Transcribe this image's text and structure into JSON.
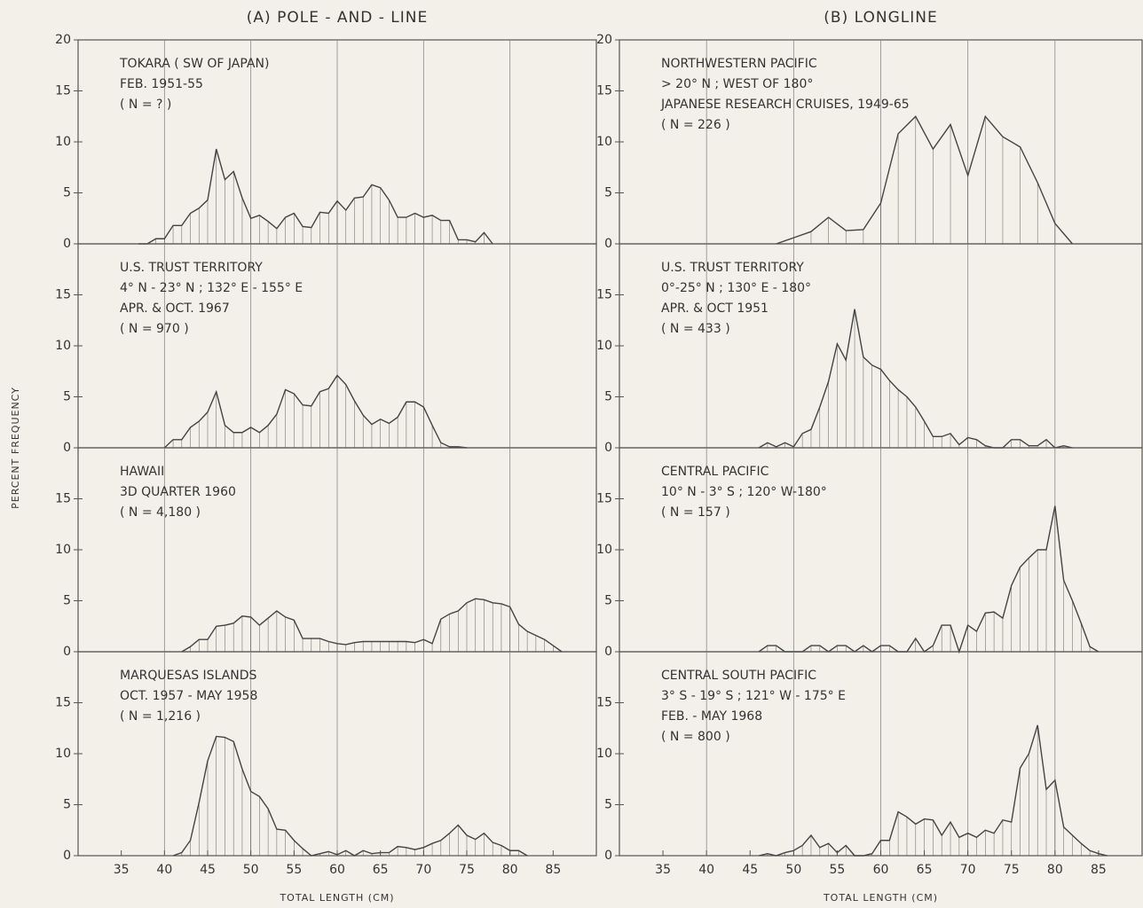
{
  "ylabel": "PERCENT FREQUENCY",
  "chart_data": [
    {
      "type": "line",
      "column_title": "(A) POLE - AND - LINE",
      "annotations": [
        "TOKARA ( SW OF JAPAN)",
        "FEB. 1951-55",
        "( N = ? )"
      ],
      "color": "#444444",
      "xlim": [
        30,
        90
      ],
      "ylim": [
        0,
        20
      ],
      "yticks": [
        0,
        5,
        10,
        15,
        20
      ],
      "grid_x": [
        40,
        50,
        60,
        70,
        80
      ],
      "x": [
        37,
        38,
        39,
        40,
        41,
        42,
        43,
        44,
        45,
        46,
        47,
        48,
        49,
        50,
        51,
        52,
        53,
        54,
        55,
        56,
        57,
        58,
        59,
        60,
        61,
        62,
        63,
        64,
        65,
        66,
        67,
        68,
        69,
        70,
        71,
        72,
        73,
        74,
        75,
        76,
        77,
        78
      ],
      "values": [
        0,
        0,
        0.5,
        0.5,
        1.8,
        1.8,
        3,
        3.5,
        4.3,
        9.3,
        6.3,
        7.1,
        4.5,
        2.5,
        2.8,
        2.2,
        1.5,
        2.6,
        3,
        1.7,
        1.6,
        3.1,
        3,
        4.2,
        3.3,
        4.5,
        4.6,
        5.8,
        5.5,
        4.3,
        2.6,
        2.6,
        3,
        2.6,
        2.8,
        2.3,
        2.3,
        0.4,
        0.4,
        0.2,
        1.1,
        0
      ]
    },
    {
      "type": "line",
      "annotations": [
        "U.S. TRUST TERRITORY",
        "4° N - 23° N ; 132° E - 155° E",
        "APR. & OCT. 1967",
        "( N = 970 )"
      ],
      "color": "#444444",
      "xlim": [
        30,
        90
      ],
      "ylim": [
        0,
        20
      ],
      "yticks": [
        0,
        5,
        10,
        15
      ],
      "grid_x": [
        40,
        50,
        60,
        70,
        80
      ],
      "x": [
        40,
        41,
        42,
        43,
        44,
        45,
        46,
        47,
        48,
        49,
        50,
        51,
        52,
        53,
        54,
        55,
        56,
        57,
        58,
        59,
        60,
        61,
        62,
        63,
        64,
        65,
        66,
        67,
        68,
        69,
        70,
        71,
        72,
        73,
        74,
        75
      ],
      "values": [
        0,
        0.8,
        0.8,
        2,
        2.6,
        3.5,
        5.5,
        2.2,
        1.5,
        1.5,
        2,
        1.5,
        2.2,
        3.3,
        5.7,
        5.3,
        4.2,
        4.1,
        5.5,
        5.8,
        7.1,
        6.2,
        4.6,
        3.2,
        2.3,
        2.8,
        2.4,
        3,
        4.5,
        4.5,
        4,
        2.2,
        0.5,
        0.1,
        0.1,
        0
      ]
    },
    {
      "type": "line",
      "annotations": [
        "HAWAII",
        "3D QUARTER 1960",
        "( N = 4,180 )"
      ],
      "color": "#444444",
      "xlim": [
        30,
        90
      ],
      "ylim": [
        0,
        20
      ],
      "yticks": [
        0,
        5,
        10,
        15
      ],
      "grid_x": [
        40,
        50,
        60,
        70,
        80
      ],
      "x": [
        42,
        43,
        44,
        45,
        46,
        47,
        48,
        49,
        50,
        51,
        52,
        53,
        54,
        55,
        56,
        57,
        58,
        59,
        60,
        61,
        62,
        63,
        64,
        65,
        66,
        67,
        68,
        69,
        70,
        71,
        72,
        73,
        74,
        75,
        76,
        77,
        78,
        79,
        80,
        81,
        82,
        83,
        84,
        85,
        86
      ],
      "values": [
        0,
        0.5,
        1.2,
        1.2,
        2.5,
        2.6,
        2.8,
        3.5,
        3.4,
        2.6,
        3.3,
        4,
        3.4,
        3.1,
        1.3,
        1.3,
        1.3,
        1,
        0.8,
        0.7,
        0.9,
        1,
        1,
        1,
        1,
        1,
        1,
        0.9,
        1.2,
        0.8,
        3.2,
        3.7,
        4,
        4.8,
        5.2,
        5.1,
        4.8,
        4.7,
        4.4,
        2.7,
        2,
        1.6,
        1.2,
        0.6,
        0
      ]
    },
    {
      "type": "line",
      "annotations": [
        "MARQUESAS ISLANDS",
        "OCT. 1957 - MAY 1958",
        "( N = 1,216 )"
      ],
      "xlabel": "TOTAL LENGTH (CM)",
      "color": "#444444",
      "xlim": [
        30,
        90
      ],
      "ylim": [
        0,
        20
      ],
      "yticks": [
        0,
        5,
        10,
        15
      ],
      "xticks": [
        35,
        40,
        45,
        50,
        55,
        60,
        65,
        70,
        75,
        80,
        85
      ],
      "grid_x": [
        40,
        50,
        60,
        70,
        80
      ],
      "x": [
        41,
        42,
        43,
        44,
        45,
        46,
        47,
        48,
        49,
        50,
        51,
        52,
        53,
        54,
        55,
        56,
        57,
        58,
        59,
        60,
        61,
        62,
        63,
        64,
        65,
        66,
        67,
        68,
        69,
        70,
        71,
        72,
        73,
        74,
        75,
        76,
        77,
        78,
        79,
        80,
        81,
        82
      ],
      "values": [
        0,
        0.3,
        1.5,
        5.2,
        9.3,
        11.7,
        11.6,
        11.2,
        8.5,
        6.3,
        5.8,
        4.6,
        2.6,
        2.5,
        1.5,
        0.7,
        0,
        0.2,
        0.4,
        0.1,
        0.5,
        0,
        0.5,
        0.2,
        0.3,
        0.3,
        0.9,
        0.8,
        0.6,
        0.8,
        1.2,
        1.5,
        2.2,
        3,
        2,
        1.6,
        2.2,
        1.3,
        1,
        0.5,
        0.5,
        0
      ]
    },
    {
      "type": "line",
      "column_title": "(B) LONGLINE",
      "annotations": [
        "NORTHWESTERN PACIFIC",
        "> 20° N ; WEST OF 180°",
        "JAPANESE RESEARCH CRUISES, 1949-65",
        "( N = 226 )"
      ],
      "color": "#444444",
      "xlim": [
        30,
        90
      ],
      "ylim": [
        0,
        20
      ],
      "yticks": [
        0,
        5,
        10,
        15,
        20
      ],
      "grid_x": [
        40,
        50,
        60,
        70,
        80
      ],
      "x": [
        48,
        50,
        52,
        54,
        56,
        58,
        60,
        62,
        64,
        66,
        68,
        70,
        72,
        74,
        76,
        78,
        80,
        82
      ],
      "values": [
        0,
        0.6,
        1.2,
        2.6,
        1.3,
        1.4,
        4,
        10.8,
        12.5,
        9.3,
        11.7,
        6.7,
        12.5,
        10.5,
        9.5,
        6,
        2,
        0
      ]
    },
    {
      "type": "line",
      "annotations": [
        "U.S. TRUST TERRITORY",
        "0°-25° N ; 130° E - 180°",
        "APR. & OCT 1951",
        "( N = 433 )"
      ],
      "color": "#444444",
      "xlim": [
        30,
        90
      ],
      "ylim": [
        0,
        20
      ],
      "yticks": [
        0,
        5,
        10,
        15
      ],
      "grid_x": [
        40,
        50,
        60,
        70,
        80
      ],
      "x": [
        46,
        47,
        48,
        49,
        50,
        51,
        52,
        53,
        54,
        55,
        56,
        57,
        58,
        59,
        60,
        61,
        62,
        63,
        64,
        65,
        66,
        67,
        68,
        69,
        70,
        71,
        72,
        73,
        74,
        75,
        76,
        77,
        78,
        79,
        80,
        81,
        82
      ],
      "values": [
        0,
        0.5,
        0.1,
        0.5,
        0.1,
        1.4,
        1.8,
        4,
        6.5,
        10.2,
        8.6,
        13.6,
        8.9,
        8.1,
        7.7,
        6.6,
        5.7,
        5,
        4,
        2.6,
        1.1,
        1.1,
        1.4,
        0.3,
        1,
        0.8,
        0.2,
        0,
        0,
        0.8,
        0.8,
        0.2,
        0.2,
        0.8,
        0,
        0.2,
        0
      ]
    },
    {
      "type": "line",
      "annotations": [
        "CENTRAL PACIFIC",
        "10° N - 3° S ; 120° W-180°",
        "( N = 157 )"
      ],
      "color": "#444444",
      "xlim": [
        30,
        90
      ],
      "ylim": [
        0,
        20
      ],
      "yticks": [
        0,
        5,
        10,
        15
      ],
      "grid_x": [
        40,
        50,
        60,
        70,
        80
      ],
      "x": [
        46,
        47,
        48,
        49,
        50,
        51,
        52,
        53,
        54,
        55,
        56,
        57,
        58,
        59,
        60,
        61,
        62,
        63,
        64,
        65,
        66,
        67,
        68,
        69,
        70,
        71,
        72,
        73,
        74,
        75,
        76,
        77,
        78,
        79,
        80,
        81,
        82,
        83,
        84,
        85
      ],
      "values": [
        0,
        0.6,
        0.6,
        0,
        0,
        0,
        0.6,
        0.6,
        0,
        0.6,
        0.6,
        0,
        0.6,
        0,
        0.6,
        0.6,
        0,
        0,
        1.3,
        0,
        0.6,
        2.6,
        2.6,
        0,
        2.6,
        2,
        3.8,
        3.9,
        3.3,
        6.5,
        8.3,
        9.2,
        10,
        10,
        14.3,
        7,
        5,
        2.8,
        0.5,
        0
      ]
    },
    {
      "type": "line",
      "annotations": [
        "CENTRAL SOUTH PACIFIC",
        "3° S - 19° S ; 121° W - 175° E",
        "FEB. - MAY 1968",
        "( N = 800 )"
      ],
      "xlabel": "TOTAL LENGTH (CM)",
      "color": "#444444",
      "xlim": [
        30,
        90
      ],
      "ylim": [
        0,
        20
      ],
      "yticks": [
        0,
        5,
        10,
        15
      ],
      "xticks": [
        35,
        40,
        45,
        50,
        55,
        60,
        65,
        70,
        75,
        80,
        85
      ],
      "grid_x": [
        40,
        50,
        60,
        70,
        80
      ],
      "x": [
        46,
        47,
        48,
        49,
        50,
        51,
        52,
        53,
        54,
        55,
        56,
        57,
        58,
        59,
        60,
        61,
        62,
        63,
        64,
        65,
        66,
        67,
        68,
        69,
        70,
        71,
        72,
        73,
        74,
        75,
        76,
        77,
        78,
        79,
        80,
        81,
        82,
        83,
        84,
        85,
        86
      ],
      "values": [
        0,
        0.2,
        0,
        0.3,
        0.5,
        1,
        2,
        0.8,
        1.2,
        0.3,
        1,
        0,
        0,
        0.2,
        1.5,
        1.5,
        4.3,
        3.8,
        3.1,
        3.6,
        3.5,
        2,
        3.3,
        1.8,
        2.2,
        1.8,
        2.5,
        2.2,
        3.5,
        3.3,
        8.6,
        10,
        12.8,
        6.5,
        7.4,
        2.8,
        2,
        1.2,
        0.5,
        0.2,
        0
      ]
    }
  ]
}
